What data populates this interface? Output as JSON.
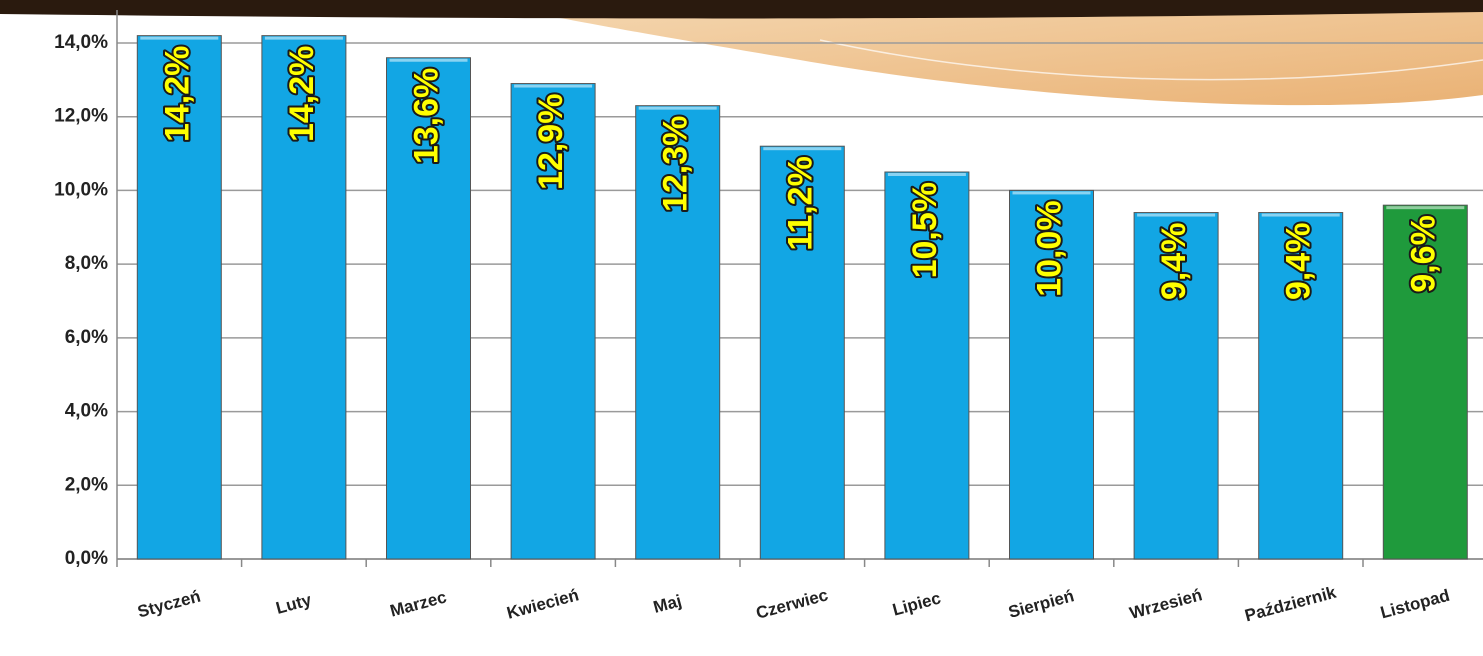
{
  "chart_data": {
    "type": "bar",
    "categories": [
      "Styczeń",
      "Luty",
      "Marzec",
      "Kwiecień",
      "Maj",
      "Czerwiec",
      "Lipiec",
      "Sierpień",
      "Wrzesień",
      "Październik",
      "Listopad"
    ],
    "values": [
      14.2,
      14.2,
      13.6,
      12.9,
      12.3,
      11.2,
      10.5,
      10.0,
      9.4,
      9.4,
      9.6
    ],
    "value_labels": [
      "14,2%",
      "14,2%",
      "13,6%",
      "12,9%",
      "12,3%",
      "11,2%",
      "10,5%",
      "10,0%",
      "9,4%",
      "9,4%",
      "9,6%"
    ],
    "colors": [
      "#12a6e4",
      "#12a6e4",
      "#12a6e4",
      "#12a6e4",
      "#12a6e4",
      "#12a6e4",
      "#12a6e4",
      "#12a6e4",
      "#12a6e4",
      "#12a6e4",
      "#1f9a3c"
    ],
    "ylim": [
      0,
      14
    ],
    "yticks": [
      {
        "value": 0,
        "label": "0,0%"
      },
      {
        "value": 2,
        "label": "2,0%"
      },
      {
        "value": 4,
        "label": "4,0%"
      },
      {
        "value": 6,
        "label": "6,0%"
      },
      {
        "value": 8,
        "label": "8,0%"
      },
      {
        "value": 10,
        "label": "10,0%"
      },
      {
        "value": 12,
        "label": "12,0%"
      },
      {
        "value": 14,
        "label": "14,0%"
      }
    ],
    "grid": true
  }
}
